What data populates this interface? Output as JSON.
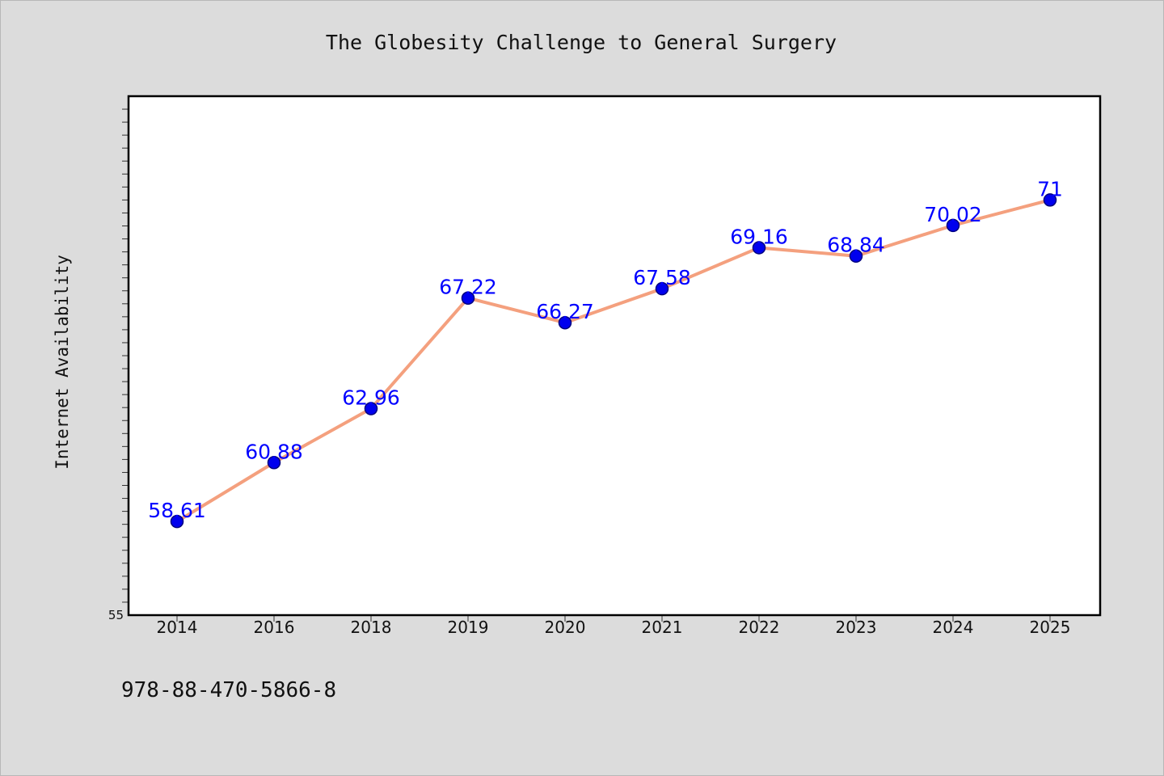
{
  "chart_data": {
    "type": "line",
    "title": "The Globesity Challenge to General Surgery",
    "xlabel": "",
    "ylabel": "Internet Availability",
    "categories": [
      "2014",
      "2016",
      "2018",
      "2019",
      "2020",
      "2021",
      "2022",
      "2023",
      "2024",
      "2025"
    ],
    "series": [
      {
        "values": [
          58.61,
          60.88,
          62.96,
          67.22,
          66.27,
          67.58,
          69.16,
          68.84,
          70.02,
          71
        ],
        "data_labels": [
          "58.61",
          "60.88",
          "62.96",
          "67.22",
          "66.27",
          "67.58",
          "69.16",
          "68.84",
          "70.02",
          "71"
        ]
      }
    ],
    "y_tick_labels": [
      "55"
    ],
    "ylim": [
      55,
      75
    ],
    "grid": false,
    "legend": "none",
    "colors": {
      "line": "#f4a07e",
      "marker_fill": "#0000ee",
      "marker_edge": "#000080",
      "data_label": "#0000ff",
      "plot_background": "#ffffff",
      "page_background": "#dcdcdc"
    }
  },
  "footer_text": "978-88-470-5866-8"
}
